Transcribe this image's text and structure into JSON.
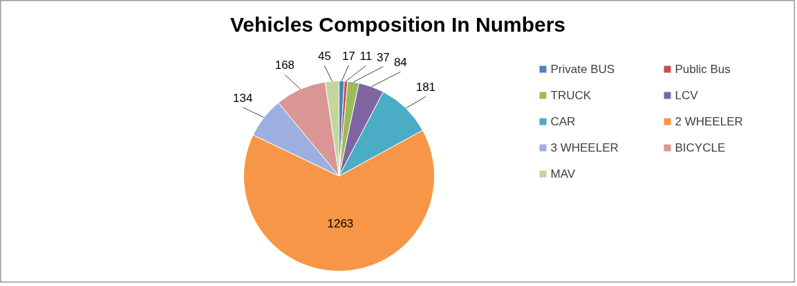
{
  "chart_data": {
    "type": "pie",
    "title": "Vehicles Composition In Numbers",
    "categories": [
      "Private BUS",
      "Public Bus",
      "TRUCK",
      "LCV",
      "CAR",
      "2 WHEELER",
      "3 WHEELER",
      "BICYCLE",
      "MAV"
    ],
    "values": [
      17,
      11,
      37,
      84,
      181,
      1263,
      134,
      168,
      45
    ],
    "colors": [
      "#4f81bd",
      "#c0504d",
      "#9bbb59",
      "#8064a2",
      "#4bacc6",
      "#f79646",
      "#9dafe0",
      "#d99694",
      "#c3d69b"
    ],
    "data_labels": true,
    "legend": "right"
  }
}
